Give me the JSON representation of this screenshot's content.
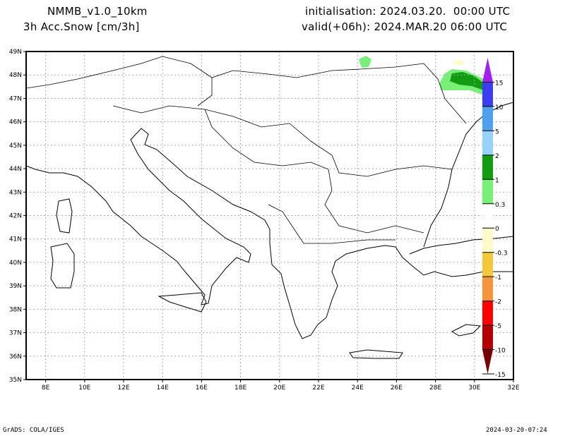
{
  "header": {
    "model": "NMMB_v1.0_10km",
    "variable": "3h Acc.Snow [cm/3h]",
    "init": "initialisation: 2024.03.20.  00:00 UTC",
    "valid": "valid(+06h): 2024.MAR.20 06:00 UTC"
  },
  "axes": {
    "lat_labels": [
      "35N",
      "36N",
      "37N",
      "38N",
      "39N",
      "40N",
      "41N",
      "42N",
      "43N",
      "44N",
      "45N",
      "46N",
      "47N",
      "48N",
      "49N"
    ],
    "lon_labels": [
      "8E",
      "10E",
      "12E",
      "14E",
      "16E",
      "18E",
      "20E",
      "22E",
      "24E",
      "26E",
      "28E",
      "30E",
      "32E"
    ]
  },
  "colorbar": {
    "labels": [
      "15",
      "10",
      "5",
      "2",
      "1",
      "0.3",
      "0",
      "-0.3",
      "-1",
      "-2",
      "-5",
      "-10",
      "-15"
    ],
    "colors": [
      "#a020f0",
      "#3c3cf0",
      "#50a0f0",
      "#96d2fa",
      "#129c12",
      "#78f078",
      "#ffffff",
      "#fffac8",
      "#f5c83c",
      "#f5963c",
      "#ff0000",
      "#b40000",
      "#780000"
    ]
  },
  "footer": {
    "left": "GrADS: COLA/IGES",
    "right": "2024-03-20-07:24"
  }
}
